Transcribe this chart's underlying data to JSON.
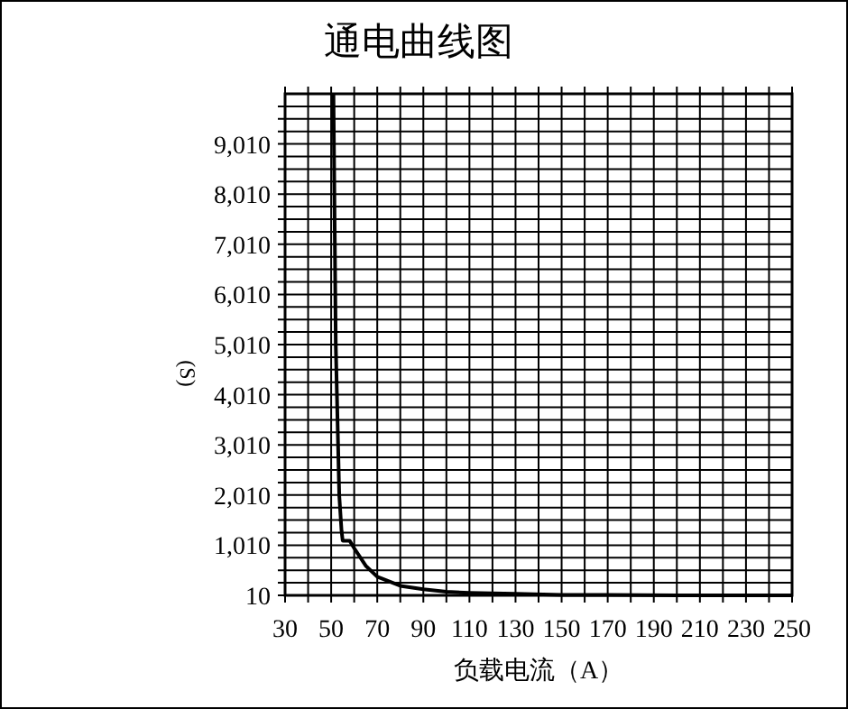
{
  "chart_data": {
    "type": "line",
    "title": "通电曲线图",
    "xlabel": "负载电流（A）",
    "ylabel": "(S)",
    "xlim": [
      30,
      250
    ],
    "ylim": [
      10,
      10010
    ],
    "xticks": [
      30,
      {
        "value": 40,
        "label": null
      },
      50,
      {
        "value": 60,
        "label": null
      },
      70,
      {
        "value": 80,
        "label": null
      },
      90,
      {
        "value": 100,
        "label": null
      },
      110,
      {
        "value": 120,
        "label": null
      },
      130,
      {
        "value": 140,
        "label": null
      },
      150,
      {
        "value": 160,
        "label": null
      },
      170,
      {
        "value": 180,
        "label": null
      },
      190,
      {
        "value": 200,
        "label": null
      },
      210,
      {
        "value": 220,
        "label": null
      },
      230,
      {
        "value": 240,
        "label": null
      },
      250
    ],
    "yticks": [
      {
        "value": 10,
        "label": "10"
      },
      {
        "value": 260,
        "label": null
      },
      {
        "value": 510,
        "label": null
      },
      {
        "value": 760,
        "label": null
      },
      {
        "value": 1010,
        "label": "1,010"
      },
      {
        "value": 1260,
        "label": null
      },
      {
        "value": 1510,
        "label": null
      },
      {
        "value": 1760,
        "label": null
      },
      {
        "value": 2010,
        "label": "2,010"
      },
      {
        "value": 2260,
        "label": null
      },
      {
        "value": 2510,
        "label": null
      },
      {
        "value": 2760,
        "label": null
      },
      {
        "value": 3010,
        "label": "3,010"
      },
      {
        "value": 3260,
        "label": null
      },
      {
        "value": 3510,
        "label": null
      },
      {
        "value": 3760,
        "label": null
      },
      {
        "value": 4010,
        "label": "4,010"
      },
      {
        "value": 4260,
        "label": null
      },
      {
        "value": 4510,
        "label": null
      },
      {
        "value": 4760,
        "label": null
      },
      {
        "value": 5010,
        "label": "5,010"
      },
      {
        "value": 5260,
        "label": null
      },
      {
        "value": 5510,
        "label": null
      },
      {
        "value": 5760,
        "label": null
      },
      {
        "value": 6010,
        "label": "6,010"
      },
      {
        "value": 6260,
        "label": null
      },
      {
        "value": 6510,
        "label": null
      },
      {
        "value": 6760,
        "label": null
      },
      {
        "value": 7010,
        "label": "7,010"
      },
      {
        "value": 7260,
        "label": null
      },
      {
        "value": 7510,
        "label": null
      },
      {
        "value": 7760,
        "label": null
      },
      {
        "value": 8010,
        "label": "8,010"
      },
      {
        "value": 8260,
        "label": null
      },
      {
        "value": 8510,
        "label": null
      },
      {
        "value": 8760,
        "label": null
      },
      {
        "value": 9010,
        "label": "9,010"
      },
      {
        "value": 9260,
        "label": null
      },
      {
        "value": 9510,
        "label": null
      },
      {
        "value": 9760,
        "label": null
      }
    ],
    "grid": true,
    "line_style": "solid",
    "series": [
      {
        "color": "#000000",
        "x": [
          51,
          52,
          53.5,
          54.5,
          55,
          58,
          60,
          65,
          70,
          80,
          90,
          100,
          110,
          130,
          150,
          170,
          200,
          250
        ],
        "values": [
          10010,
          5010,
          2010,
          1300,
          1100,
          1100,
          950,
          600,
          380,
          200,
          130,
          80,
          60,
          40,
          20,
          20,
          10,
          10
        ]
      }
    ]
  }
}
